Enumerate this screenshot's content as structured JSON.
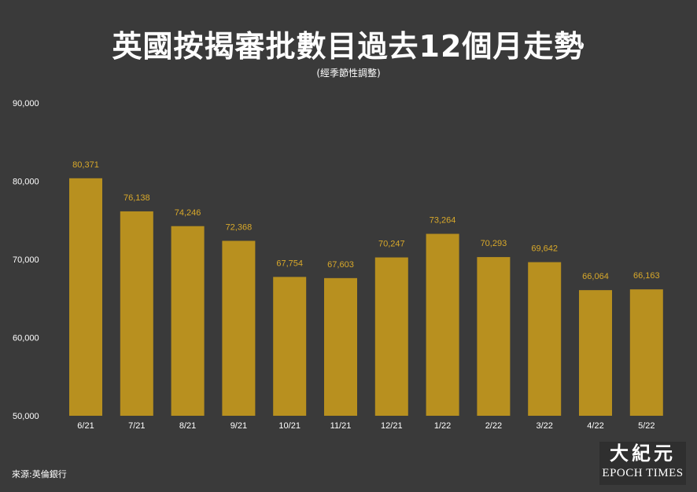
{
  "chart_data": {
    "type": "bar",
    "title": "英國按揭審批數目過去12個月走勢",
    "subtitle": "(經季節性調整)",
    "categories": [
      "6/21",
      "7/21",
      "8/21",
      "9/21",
      "10/21",
      "11/21",
      "12/21",
      "1/22",
      "2/22",
      "3/22",
      "4/22",
      "5/22"
    ],
    "values": [
      80371,
      76138,
      74246,
      72368,
      67754,
      67603,
      70247,
      73264,
      70293,
      69642,
      66064,
      66163
    ],
    "value_labels": [
      "80,371",
      "76,138",
      "74,246",
      "72,368",
      "67,754",
      "67,603",
      "70,247",
      "73,264",
      "70,293",
      "69,642",
      "66,064",
      "66,163"
    ],
    "ylim": [
      50000,
      90000
    ],
    "yticks": [
      50000,
      60000,
      70000,
      80000,
      90000
    ],
    "ytick_labels": [
      "50,000",
      "60,000",
      "70,000",
      "80,000",
      "90,000"
    ],
    "xlabel": "",
    "ylabel": "",
    "grid": false,
    "legend": "none",
    "colors": {
      "background": "#3a3a3a",
      "bar": "#b8901f",
      "value_label": "#d9a92a",
      "axis_text": "#ffffff"
    }
  },
  "footer": {
    "source": "來源:英倫銀行",
    "logo_cn": "大紀元",
    "logo_en": "EPOCH TIMES"
  }
}
